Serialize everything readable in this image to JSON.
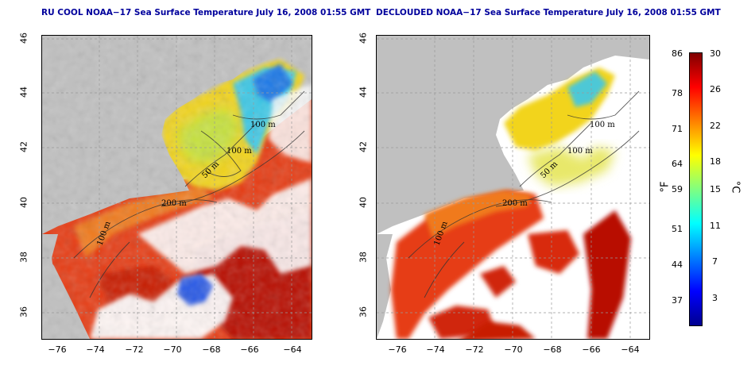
{
  "panels": [
    {
      "title": "RU COOL NOAA−17 Sea Surface Temperature July 16, 2008 01:55 GMT"
    },
    {
      "title": "DECLOUDED NOAA−17 Sea Surface Temperature July 16, 2008 01:55 GMT"
    }
  ],
  "axes": {
    "lon_ticks": [
      "−76",
      "−74",
      "−72",
      "−70",
      "−68",
      "−66",
      "−64"
    ],
    "lat_ticks": [
      "46",
      "44",
      "42",
      "40",
      "38",
      "36"
    ],
    "lon_range": [
      -77,
      -63
    ],
    "lat_range": [
      35,
      46
    ]
  },
  "contours": {
    "labels": [
      "100 m",
      "100 m",
      "50 m",
      "200 m",
      "100 m"
    ]
  },
  "colorbar": {
    "fahrenheit_ticks": [
      "86",
      "78",
      "71",
      "64",
      "59",
      "51",
      "44",
      "37"
    ],
    "celsius_ticks": [
      "30",
      "26",
      "22",
      "18",
      "15",
      "11",
      "7",
      "3"
    ],
    "unit_f": "°F",
    "unit_c": "°C",
    "colors": [
      "#00008f",
      "#0000ff",
      "#0080ff",
      "#00ffff",
      "#80ff80",
      "#ffff00",
      "#ff8000",
      "#ff0000",
      "#800000"
    ]
  },
  "colors": {
    "land": "#c0c0c0",
    "cloud": "#ffffff",
    "title": "#00009c"
  }
}
